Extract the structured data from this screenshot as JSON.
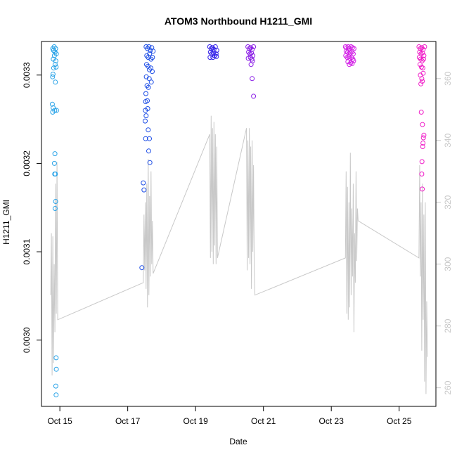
{
  "chart_data": {
    "type": "scatter",
    "title": "ATOM3 Northbound H1211_GMI",
    "xlabel": "Date",
    "ylabel": "H1211_GMI",
    "x_ticks": [
      "Oct 15",
      "Oct 17",
      "Oct 19",
      "Oct 21",
      "Oct 23",
      "Oct 25"
    ],
    "y_ticks": [
      "0.0030",
      "0.0031",
      "0.0032",
      "0.0033"
    ],
    "y2_ticks": [
      "260",
      "280",
      "300",
      "320",
      "340",
      "360"
    ],
    "xlim": [
      "2016-10-14 11:00",
      "2016-10-26 02:00"
    ],
    "ylim": [
      0.002925,
      0.003338
    ],
    "y2lim": [
      254,
      372
    ],
    "grid": false,
    "legend": "none",
    "scatter_series": [
      {
        "color": "#29A3E8",
        "points": [
          [
            "2016-10-14 19:00",
            0.00333
          ],
          [
            "2016-10-14 19:30",
            0.003328
          ],
          [
            "2016-10-14 20:00",
            0.003332
          ],
          [
            "2016-10-14 20:30",
            0.003326
          ],
          [
            "2016-10-14 21:00",
            0.00333
          ],
          [
            "2016-10-14 21:30",
            0.003324
          ],
          [
            "2016-10-14 19:20",
            0.003318
          ],
          [
            "2016-10-14 20:10",
            0.003322
          ],
          [
            "2016-10-14 21:10",
            0.003316
          ],
          [
            "2016-10-14 19:40",
            0.003308
          ],
          [
            "2016-10-14 20:40",
            0.003312
          ],
          [
            "2016-10-14 18:50",
            0.003298
          ],
          [
            "2016-10-14 19:10",
            0.003301
          ],
          [
            "2016-10-14 21:20",
            0.003309
          ],
          [
            "2016-10-14 20:50",
            0.003292
          ],
          [
            "2016-10-14 18:40",
            0.003267
          ],
          [
            "2016-10-14 19:15",
            0.003263
          ],
          [
            "2016-10-14 20:20",
            0.00326
          ],
          [
            "2016-10-14 18:55",
            0.003258
          ],
          [
            "2016-10-14 21:40",
            0.00326
          ],
          [
            "2016-10-14 20:30",
            0.003211
          ],
          [
            "2016-10-14 20:10",
            0.0032
          ],
          [
            "2016-10-14 20:50",
            0.003188
          ],
          [
            "2016-10-14 20:20",
            0.003188
          ],
          [
            "2016-10-14 21:00",
            0.003157
          ],
          [
            "2016-10-14 20:40",
            0.003149
          ],
          [
            "2016-10-14 21:20",
            0.00298
          ],
          [
            "2016-10-14 21:30",
            0.002967
          ],
          [
            "2016-10-14 21:10",
            0.002948
          ],
          [
            "2016-10-14 21:20",
            0.002938
          ]
        ]
      },
      {
        "color": "#1E4EE6",
        "points": [
          [
            "2016-10-17 13:00",
            0.003332
          ],
          [
            "2016-10-17 14:00",
            0.00333
          ],
          [
            "2016-10-17 15:00",
            0.003332
          ],
          [
            "2016-10-17 16:00",
            0.003328
          ],
          [
            "2016-10-17 17:00",
            0.003331
          ],
          [
            "2016-10-17 18:00",
            0.003327
          ],
          [
            "2016-10-17 13:30",
            0.003322
          ],
          [
            "2016-10-17 14:30",
            0.00332
          ],
          [
            "2016-10-17 15:30",
            0.003324
          ],
          [
            "2016-10-17 16:30",
            0.003318
          ],
          [
            "2016-10-17 17:30",
            0.00332
          ],
          [
            "2016-10-17 13:20",
            0.003312
          ],
          [
            "2016-10-17 14:20",
            0.00331
          ],
          [
            "2016-10-17 15:20",
            0.003306
          ],
          [
            "2016-10-17 16:20",
            0.003308
          ],
          [
            "2016-10-17 17:20",
            0.003304
          ],
          [
            "2016-10-17 13:10",
            0.003298
          ],
          [
            "2016-10-17 15:10",
            0.003296
          ],
          [
            "2016-10-17 16:40",
            0.003292
          ],
          [
            "2016-10-17 13:40",
            0.003288
          ],
          [
            "2016-10-17 14:40",
            0.003286
          ],
          [
            "2016-10-17 12:50",
            0.003279
          ],
          [
            "2016-10-17 13:50",
            0.003271
          ],
          [
            "2016-10-17 12:40",
            0.00327
          ],
          [
            "2016-10-17 14:10",
            0.003262
          ],
          [
            "2016-10-17 12:30",
            0.00326
          ],
          [
            "2016-10-17 13:00",
            0.003254
          ],
          [
            "2016-10-17 12:20",
            0.003248
          ],
          [
            "2016-10-17 14:30",
            0.003238
          ],
          [
            "2016-10-17 12:40",
            0.003228
          ],
          [
            "2016-10-17 15:20",
            0.003228
          ],
          [
            "2016-10-17 14:50",
            0.003214
          ],
          [
            "2016-10-17 15:40",
            0.003201
          ],
          [
            "2016-10-17 11:00",
            0.003178
          ],
          [
            "2016-10-17 11:30",
            0.00317
          ],
          [
            "2016-10-17 10:00",
            0.003082
          ]
        ]
      },
      {
        "color": "#3220E8",
        "points": [
          [
            "2016-10-19 10:00",
            0.003332
          ],
          [
            "2016-10-19 11:00",
            0.00333
          ],
          [
            "2016-10-19 12:00",
            0.003331
          ],
          [
            "2016-10-19 13:00",
            0.003329
          ],
          [
            "2016-10-19 14:00",
            0.003332
          ],
          [
            "2016-10-19 15:00",
            0.003328
          ],
          [
            "2016-10-19 10:30",
            0.003326
          ],
          [
            "2016-10-19 11:30",
            0.003324
          ],
          [
            "2016-10-19 12:30",
            0.003325
          ],
          [
            "2016-10-19 13:30",
            0.003322
          ],
          [
            "2016-10-19 14:30",
            0.003324
          ],
          [
            "2016-10-19 10:15",
            0.00332
          ],
          [
            "2016-10-19 12:15",
            0.00332
          ],
          [
            "2016-10-19 14:45",
            0.003321
          ]
        ]
      },
      {
        "color": "#8A1EE6",
        "points": [
          [
            "2016-10-20 13:00",
            0.003332
          ],
          [
            "2016-10-20 14:00",
            0.00333
          ],
          [
            "2016-10-20 15:00",
            0.003331
          ],
          [
            "2016-10-20 16:00",
            0.003329
          ],
          [
            "2016-10-20 17:00",
            0.003332
          ],
          [
            "2016-10-20 13:30",
            0.003326
          ],
          [
            "2016-10-20 14:30",
            0.003324
          ],
          [
            "2016-10-20 15:30",
            0.003325
          ],
          [
            "2016-10-20 16:30",
            0.003322
          ],
          [
            "2016-10-20 13:15",
            0.003319
          ],
          [
            "2016-10-20 14:45",
            0.00332
          ],
          [
            "2016-10-20 15:45",
            0.003318
          ],
          [
            "2016-10-20 16:15",
            0.003316
          ],
          [
            "2016-10-20 15:15",
            0.003312
          ],
          [
            "2016-10-20 16:00",
            0.003296
          ],
          [
            "2016-10-20 17:00",
            0.003276
          ]
        ]
      },
      {
        "color": "#D21EE6",
        "points": [
          [
            "2016-10-23 10:00",
            0.003332
          ],
          [
            "2016-10-23 11:00",
            0.003331
          ],
          [
            "2016-10-23 12:00",
            0.003332
          ],
          [
            "2016-10-23 13:00",
            0.00333
          ],
          [
            "2016-10-23 14:00",
            0.003332
          ],
          [
            "2016-10-23 15:00",
            0.003331
          ],
          [
            "2016-10-23 16:00",
            0.00333
          ],
          [
            "2016-10-23 10:30",
            0.003327
          ],
          [
            "2016-10-23 11:30",
            0.003326
          ],
          [
            "2016-10-23 12:30",
            0.003327
          ],
          [
            "2016-10-23 13:30",
            0.003325
          ],
          [
            "2016-10-23 14:30",
            0.003326
          ],
          [
            "2016-10-23 15:30",
            0.003324
          ],
          [
            "2016-10-23 10:15",
            0.003322
          ],
          [
            "2016-10-23 11:15",
            0.00332
          ],
          [
            "2016-10-23 12:15",
            0.003321
          ],
          [
            "2016-10-23 13:15",
            0.003319
          ],
          [
            "2016-10-23 14:15",
            0.00332
          ],
          [
            "2016-10-23 15:15",
            0.003318
          ],
          [
            "2016-10-23 11:45",
            0.003315
          ],
          [
            "2016-10-23 13:45",
            0.003314
          ],
          [
            "2016-10-23 15:45",
            0.003316
          ],
          [
            "2016-10-23 12:45",
            0.003312
          ],
          [
            "2016-10-23 14:45",
            0.003313
          ]
        ]
      },
      {
        "color": "#F01EC8",
        "points": [
          [
            "2016-10-25 14:00",
            0.003332
          ],
          [
            "2016-10-25 15:00",
            0.00333
          ],
          [
            "2016-10-25 16:00",
            0.003331
          ],
          [
            "2016-10-25 17:00",
            0.003329
          ],
          [
            "2016-10-25 18:00",
            0.003332
          ],
          [
            "2016-10-25 14:30",
            0.003326
          ],
          [
            "2016-10-25 15:30",
            0.003324
          ],
          [
            "2016-10-25 16:30",
            0.003325
          ],
          [
            "2016-10-25 17:30",
            0.003322
          ],
          [
            "2016-10-25 14:15",
            0.00332
          ],
          [
            "2016-10-25 15:15",
            0.003318
          ],
          [
            "2016-10-25 16:15",
            0.003316
          ],
          [
            "2016-10-25 17:15",
            0.003318
          ],
          [
            "2016-10-25 14:45",
            0.003312
          ],
          [
            "2016-10-25 15:45",
            0.003309
          ],
          [
            "2016-10-25 16:45",
            0.003308
          ],
          [
            "2016-10-25 15:00",
            0.0033
          ],
          [
            "2016-10-25 16:00",
            0.003296
          ],
          [
            "2016-10-25 17:00",
            0.003302
          ],
          [
            "2016-10-25 15:20",
            0.00329
          ],
          [
            "2016-10-25 16:20",
            0.003293
          ],
          [
            "2016-10-25 15:40",
            0.003258
          ],
          [
            "2016-10-25 16:30",
            0.003244
          ],
          [
            "2016-10-25 17:10",
            0.003229
          ],
          [
            "2016-10-25 17:30",
            0.003232
          ],
          [
            "2016-10-25 16:50",
            0.003223
          ],
          [
            "2016-10-25 16:40",
            0.003219
          ],
          [
            "2016-10-25 16:10",
            0.003202
          ],
          [
            "2016-10-25 16:00",
            0.003188
          ],
          [
            "2016-10-25 16:20",
            0.003171
          ]
        ]
      }
    ],
    "line_series": {
      "color": "#c8c8c8",
      "axis": "right",
      "points": [
        [
          "2016-10-14 17:30",
          290
        ],
        [
          "2016-10-14 18:00",
          310
        ],
        [
          "2016-10-14 18:30",
          264
        ],
        [
          "2016-10-14 19:00",
          309
        ],
        [
          "2016-10-14 19:30",
          268
        ],
        [
          "2016-10-14 20:00",
          300
        ],
        [
          "2016-10-14 20:30",
          278
        ],
        [
          "2016-10-14 21:00",
          326
        ],
        [
          "2016-10-14 21:30",
          284
        ],
        [
          "2016-10-14 22:00",
          333
        ],
        [
          "2016-10-14 22:30",
          282
        ],
        [
          "2016-10-17 11:00",
          294
        ],
        [
          "2016-10-17 11:30",
          316
        ],
        [
          "2016-10-17 12:00",
          298
        ],
        [
          "2016-10-17 12:30",
          320
        ],
        [
          "2016-10-17 13:00",
          292
        ],
        [
          "2016-10-17 13:30",
          326
        ],
        [
          "2016-10-17 14:00",
          286
        ],
        [
          "2016-10-17 14:30",
          334
        ],
        [
          "2016-10-17 15:00",
          290
        ],
        [
          "2016-10-17 15:30",
          322
        ],
        [
          "2016-10-17 16:00",
          296
        ],
        [
          "2016-10-17 16:30",
          330
        ],
        [
          "2016-10-17 17:00",
          300
        ],
        [
          "2016-10-17 17:30",
          314
        ],
        [
          "2016-10-17 18:00",
          297
        ],
        [
          "2016-10-19 10:00",
          342
        ],
        [
          "2016-10-19 10:30",
          302
        ],
        [
          "2016-10-19 11:00",
          348
        ],
        [
          "2016-10-19 11:30",
          304
        ],
        [
          "2016-10-19 12:00",
          344
        ],
        [
          "2016-10-19 12:30",
          300
        ],
        [
          "2016-10-19 13:00",
          346
        ],
        [
          "2016-10-19 13:30",
          306
        ],
        [
          "2016-10-19 14:00",
          342
        ],
        [
          "2016-10-19 14:30",
          300
        ],
        [
          "2016-10-19 15:00",
          338
        ],
        [
          "2016-10-19 15:30",
          302
        ],
        [
          "2016-10-20 12:00",
          344
        ],
        [
          "2016-10-20 12:30",
          298
        ],
        [
          "2016-10-20 13:00",
          340
        ],
        [
          "2016-10-20 13:30",
          302
        ],
        [
          "2016-10-20 14:00",
          344
        ],
        [
          "2016-10-20 14:30",
          300
        ],
        [
          "2016-10-20 15:00",
          338
        ],
        [
          "2016-10-20 15:30",
          292
        ],
        [
          "2016-10-20 16:00",
          340
        ],
        [
          "2016-10-20 16:30",
          304
        ],
        [
          "2016-10-20 17:00",
          332
        ],
        [
          "2016-10-20 17:30",
          298
        ],
        [
          "2016-10-20 18:00",
          290
        ],
        [
          "2016-10-23 10:00",
          302
        ],
        [
          "2016-10-23 10:30",
          330
        ],
        [
          "2016-10-23 11:00",
          284
        ],
        [
          "2016-10-23 11:30",
          325
        ],
        [
          "2016-10-23 12:00",
          282
        ],
        [
          "2016-10-23 12:30",
          320
        ],
        [
          "2016-10-23 13:00",
          286
        ],
        [
          "2016-10-23 13:30",
          336
        ],
        [
          "2016-10-23 14:00",
          290
        ],
        [
          "2016-10-23 14:30",
          318
        ],
        [
          "2016-10-23 15:00",
          296
        ],
        [
          "2016-10-23 15:30",
          326
        ],
        [
          "2016-10-23 16:00",
          278
        ],
        [
          "2016-10-23 16:30",
          310
        ],
        [
          "2016-10-23 17:00",
          294
        ],
        [
          "2016-10-23 17:30",
          330
        ],
        [
          "2016-10-23 18:00",
          301
        ],
        [
          "2016-10-23 18:30",
          318
        ],
        [
          "2016-10-23 19:00",
          314
        ],
        [
          "2016-10-25 14:00",
          302
        ],
        [
          "2016-10-25 14:30",
          332
        ],
        [
          "2016-10-25 15:00",
          296
        ],
        [
          "2016-10-25 15:30",
          320
        ],
        [
          "2016-10-25 16:00",
          272
        ],
        [
          "2016-10-25 16:30",
          326
        ],
        [
          "2016-10-25 17:00",
          282
        ],
        [
          "2016-10-25 17:30",
          316
        ],
        [
          "2016-10-25 18:00",
          262
        ],
        [
          "2016-10-25 18:30",
          320
        ],
        [
          "2016-10-25 19:00",
          258
        ],
        [
          "2016-10-25 19:30",
          288
        ],
        [
          "2016-10-25 20:00",
          270
        ]
      ]
    }
  }
}
